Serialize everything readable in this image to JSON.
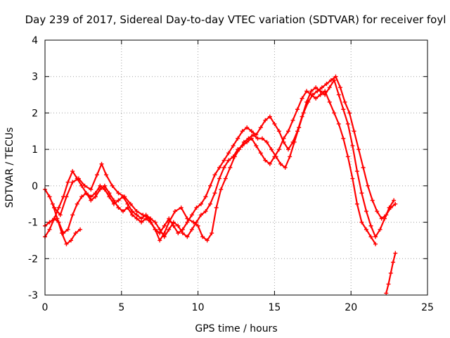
{
  "chart_data": {
    "type": "scatter",
    "title": "Day 239 of 2017, Sidereal Day-to-day VTEC variation (SDTVAR) for receiver foyl",
    "xlabel": "GPS time / hours",
    "ylabel": "SDTVAR / TECUs",
    "xlim": [
      0,
      25
    ],
    "ylim": [
      -3,
      4
    ],
    "xticks": [
      "0",
      "5",
      "10",
      "15",
      "20",
      "25"
    ],
    "yticks": [
      "-3",
      "-2",
      "-1",
      "0",
      "1",
      "2",
      "3",
      "4"
    ],
    "grid": true,
    "marker": "+",
    "color": "#ff0000",
    "series": [
      {
        "x": [
          0.0,
          0.3,
          0.6,
          1.0,
          1.4,
          1.8,
          2.2,
          2.6,
          3.0,
          3.4,
          3.7,
          4.0,
          4.4,
          4.8,
          5.2,
          5.6,
          6.0,
          6.4,
          6.8,
          7.2,
          7.5,
          7.8,
          8.1,
          8.5,
          8.9,
          9.3,
          9.7,
          10.0,
          10.3,
          10.6,
          10.9,
          11.2,
          11.5,
          11.8,
          12.1,
          12.4,
          12.7,
          13.0,
          13.3,
          13.6,
          13.9,
          14.2,
          14.5,
          14.8,
          15.1,
          15.4,
          15.7,
          16.0,
          16.3,
          16.6,
          16.9,
          17.2,
          17.5,
          17.8,
          18.1,
          18.4,
          18.7,
          19.0,
          19.3,
          19.6,
          19.9,
          20.2,
          20.5,
          20.8,
          21.1,
          21.4,
          21.7,
          22.0,
          22.3,
          22.6,
          22.9
        ],
        "y": [
          -0.1,
          -0.3,
          -0.6,
          -0.8,
          -0.3,
          0.1,
          0.2,
          0.0,
          -0.1,
          0.3,
          0.6,
          0.3,
          0.0,
          -0.2,
          -0.3,
          -0.5,
          -0.7,
          -0.8,
          -0.9,
          -1.2,
          -1.5,
          -1.3,
          -1.0,
          -0.7,
          -0.6,
          -0.9,
          -1.0,
          -1.1,
          -1.4,
          -1.5,
          -1.3,
          -0.6,
          -0.1,
          0.2,
          0.5,
          0.8,
          1.0,
          1.2,
          1.3,
          1.4,
          1.3,
          1.3,
          1.2,
          1.0,
          0.8,
          0.6,
          0.5,
          0.8,
          1.2,
          1.6,
          2.0,
          2.3,
          2.5,
          2.6,
          2.7,
          2.8,
          2.9,
          3.0,
          2.7,
          2.3,
          2.0,
          1.5,
          1.0,
          0.5,
          0.0,
          -0.4,
          -0.7,
          -0.9,
          -0.8,
          -0.6,
          -0.5
        ]
      },
      {
        "x": [
          0.0,
          0.3,
          0.6,
          0.9,
          1.2,
          1.5,
          1.8,
          2.1,
          2.4,
          2.7,
          3.0,
          3.3,
          3.6,
          3.9,
          4.2,
          4.5,
          4.8,
          5.1,
          5.4,
          5.7,
          6.0,
          6.3,
          6.6,
          6.9,
          7.2,
          7.5,
          7.8,
          8.1,
          8.4,
          8.7,
          9.0,
          9.3,
          9.6,
          9.9,
          10.2,
          10.5,
          10.8,
          11.1,
          11.4,
          11.7,
          12.0,
          12.3,
          12.6,
          12.9,
          13.2,
          13.5,
          13.8,
          14.1,
          14.4,
          14.7,
          15.0,
          15.3,
          15.6,
          15.9,
          16.2,
          16.5,
          16.8,
          17.1,
          17.4,
          17.7,
          18.0,
          18.3,
          18.6,
          18.9,
          19.2,
          19.5,
          19.8,
          20.1,
          20.4,
          20.7,
          21.0,
          21.3,
          21.6,
          21.9,
          22.2,
          22.5,
          22.8
        ],
        "y": [
          -1.4,
          -1.2,
          -0.9,
          -0.6,
          -0.3,
          0.1,
          0.4,
          0.2,
          0.0,
          -0.2,
          -0.4,
          -0.3,
          -0.1,
          0.0,
          -0.2,
          -0.4,
          -0.6,
          -0.7,
          -0.6,
          -0.8,
          -0.9,
          -1.0,
          -0.9,
          -1.0,
          -1.2,
          -1.3,
          -1.1,
          -0.9,
          -1.1,
          -1.3,
          -1.2,
          -1.0,
          -0.8,
          -0.6,
          -0.5,
          -0.3,
          0.0,
          0.3,
          0.5,
          0.7,
          0.9,
          1.1,
          1.3,
          1.5,
          1.6,
          1.5,
          1.4,
          1.6,
          1.8,
          1.9,
          1.7,
          1.5,
          1.2,
          1.0,
          1.2,
          1.5,
          1.9,
          2.3,
          2.6,
          2.7,
          2.6,
          2.5,
          2.7,
          2.9,
          2.5,
          2.1,
          1.7,
          1.1,
          0.4,
          -0.2,
          -0.7,
          -1.1,
          -1.4,
          -1.2,
          -0.9,
          -0.6,
          -0.4
        ]
      },
      {
        "x": [
          0.0,
          0.3,
          0.6,
          0.9,
          1.2,
          1.5,
          1.8,
          2.1,
          2.4,
          2.7,
          3.0,
          3.3,
          3.6,
          3.9,
          4.2,
          4.5,
          4.8,
          5.1,
          5.4,
          5.7,
          6.0,
          6.3,
          6.6,
          6.9,
          7.2,
          7.5,
          7.8,
          8.1,
          8.4,
          8.7,
          9.0,
          9.3,
          9.6,
          9.9,
          10.2,
          10.5,
          10.8,
          11.1,
          11.4,
          11.7,
          12.0,
          12.3,
          12.6,
          12.9,
          13.2,
          13.5,
          13.8,
          14.1,
          14.4,
          14.7,
          15.0,
          15.3,
          15.6,
          15.9,
          16.2,
          16.5,
          16.8,
          17.1,
          17.4,
          17.7,
          18.0,
          18.3,
          18.6,
          18.9,
          19.2,
          19.5,
          19.8,
          20.1,
          20.4,
          20.7,
          21.0,
          21.3,
          21.6
        ],
        "y": [
          -1.1,
          -1.0,
          -0.9,
          -1.0,
          -1.3,
          -1.2,
          -0.8,
          -0.5,
          -0.3,
          -0.2,
          -0.3,
          -0.2,
          0.0,
          -0.1,
          -0.3,
          -0.5,
          -0.4,
          -0.3,
          -0.5,
          -0.7,
          -0.8,
          -0.9,
          -0.8,
          -0.9,
          -1.0,
          -1.2,
          -1.4,
          -1.2,
          -1.0,
          -1.1,
          -1.3,
          -1.4,
          -1.2,
          -1.0,
          -0.8,
          -0.7,
          -0.5,
          -0.2,
          0.2,
          0.5,
          0.7,
          0.8,
          1.0,
          1.1,
          1.2,
          1.3,
          1.1,
          0.9,
          0.7,
          0.6,
          0.8,
          1.0,
          1.3,
          1.5,
          1.8,
          2.1,
          2.4,
          2.6,
          2.5,
          2.4,
          2.5,
          2.6,
          2.3,
          2.0,
          1.7,
          1.3,
          0.8,
          0.2,
          -0.5,
          -1.0,
          -1.2,
          -1.4,
          -1.6
        ]
      },
      {
        "x": [
          0.5,
          0.8,
          1.1,
          1.4,
          1.7,
          2.0,
          2.3
        ],
        "y": [
          -0.5,
          -0.9,
          -1.3,
          -1.6,
          -1.5,
          -1.3,
          -1.2
        ]
      },
      {
        "x": [
          22.3,
          22.45,
          22.6,
          22.75,
          22.9
        ],
        "y": [
          -2.95,
          -2.7,
          -2.4,
          -2.1,
          -1.85
        ]
      }
    ]
  }
}
